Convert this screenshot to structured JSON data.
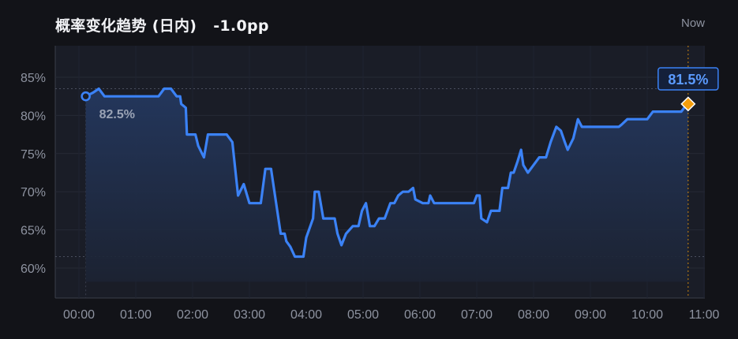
{
  "header": {
    "title": "概率变化趋势 (日内)",
    "delta": "-1.0pp",
    "now_label": "Now"
  },
  "colors": {
    "background": "#121318",
    "plot_background": "#1a1d27",
    "line": "#3b82f6",
    "area_top": "#24385f",
    "area_bottom": "#1c2333",
    "current_marker": "#f59e0b",
    "axis_text": "#8e93a0"
  },
  "chart_data": {
    "type": "line",
    "title": "概率变化趋势 (日内)",
    "xlabel": "",
    "ylabel": "",
    "x_ticks": [
      "00:00",
      "01:00",
      "02:00",
      "03:00",
      "04:00",
      "05:00",
      "06:00",
      "07:00",
      "08:00",
      "09:00",
      "10:00",
      "11:00"
    ],
    "y_ticks": [
      "60%",
      "65%",
      "70%",
      "75%",
      "80%",
      "85%"
    ],
    "xlim_hours": [
      0,
      11
    ],
    "ylim": [
      56,
      89
    ],
    "grid": true,
    "reference_lines": [
      83.5,
      61.5
    ],
    "start_label": "82.5%",
    "end_label": "81.5%",
    "series": [
      {
        "values": [
          [
            0.12,
            82.5
          ],
          [
            0.25,
            83
          ],
          [
            0.35,
            83.5
          ],
          [
            0.45,
            82.5
          ],
          [
            0.8,
            82.5
          ],
          [
            1.4,
            82.5
          ],
          [
            1.5,
            83.5
          ],
          [
            1.62,
            83.5
          ],
          [
            1.72,
            82.5
          ],
          [
            1.78,
            82.5
          ],
          [
            1.8,
            81.5
          ],
          [
            1.88,
            81
          ],
          [
            1.9,
            77.5
          ],
          [
            2.05,
            77.5
          ],
          [
            2.1,
            76
          ],
          [
            2.2,
            74.5
          ],
          [
            2.27,
            77.5
          ],
          [
            2.6,
            77.5
          ],
          [
            2.7,
            76.5
          ],
          [
            2.8,
            69.5
          ],
          [
            2.9,
            71
          ],
          [
            3.0,
            68.5
          ],
          [
            3.2,
            68.5
          ],
          [
            3.28,
            73
          ],
          [
            3.38,
            73
          ],
          [
            3.45,
            69.5
          ],
          [
            3.55,
            64.5
          ],
          [
            3.62,
            64.5
          ],
          [
            3.65,
            63.5
          ],
          [
            3.72,
            62.8
          ],
          [
            3.8,
            61.5
          ],
          [
            3.95,
            61.5
          ],
          [
            4.0,
            64
          ],
          [
            4.12,
            66.5
          ],
          [
            4.15,
            70
          ],
          [
            4.22,
            70
          ],
          [
            4.3,
            66.5
          ],
          [
            4.5,
            66.5
          ],
          [
            4.55,
            64.5
          ],
          [
            4.62,
            63
          ],
          [
            4.7,
            64.5
          ],
          [
            4.82,
            65.5
          ],
          [
            4.92,
            65.5
          ],
          [
            4.98,
            67.5
          ],
          [
            5.05,
            68.5
          ],
          [
            5.12,
            65.5
          ],
          [
            5.2,
            65.5
          ],
          [
            5.28,
            66.5
          ],
          [
            5.38,
            66.5
          ],
          [
            5.48,
            68.5
          ],
          [
            5.55,
            68.5
          ],
          [
            5.62,
            69.5
          ],
          [
            5.7,
            70
          ],
          [
            5.8,
            70
          ],
          [
            5.88,
            70.5
          ],
          [
            5.92,
            69
          ],
          [
            6.05,
            68.5
          ],
          [
            6.15,
            68.5
          ],
          [
            6.18,
            69.5
          ],
          [
            6.25,
            68.5
          ],
          [
            6.95,
            68.5
          ],
          [
            7.0,
            69.5
          ],
          [
            7.05,
            69.5
          ],
          [
            7.08,
            66.5
          ],
          [
            7.18,
            66
          ],
          [
            7.25,
            67.5
          ],
          [
            7.4,
            67.5
          ],
          [
            7.45,
            70.5
          ],
          [
            7.55,
            70.5
          ],
          [
            7.6,
            72.5
          ],
          [
            7.65,
            72.5
          ],
          [
            7.72,
            74
          ],
          [
            7.78,
            75.5
          ],
          [
            7.82,
            73.5
          ],
          [
            7.9,
            72.5
          ],
          [
            8.0,
            73.5
          ],
          [
            8.1,
            74.5
          ],
          [
            8.22,
            74.5
          ],
          [
            8.3,
            76.5
          ],
          [
            8.4,
            78.5
          ],
          [
            8.48,
            78
          ],
          [
            8.55,
            76.5
          ],
          [
            8.6,
            75.5
          ],
          [
            8.7,
            77
          ],
          [
            8.78,
            79.5
          ],
          [
            8.85,
            78.5
          ],
          [
            9.5,
            78.5
          ],
          [
            9.55,
            78.8
          ],
          [
            9.65,
            79.5
          ],
          [
            10.0,
            79.5
          ],
          [
            10.1,
            80.5
          ],
          [
            10.6,
            80.5
          ],
          [
            10.65,
            81
          ],
          [
            10.72,
            81.5
          ]
        ]
      }
    ]
  }
}
